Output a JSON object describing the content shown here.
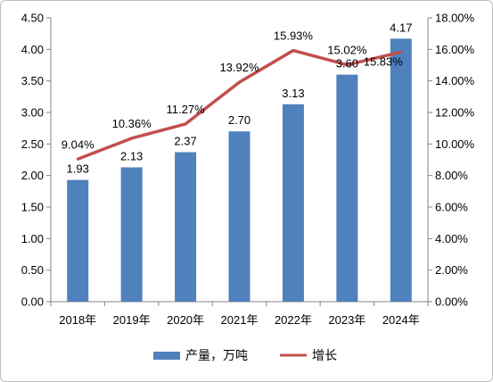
{
  "chart_data": {
    "type": "bar",
    "categories": [
      "2018年",
      "2019年",
      "2020年",
      "2021年",
      "2022年",
      "2023年",
      "2024年"
    ],
    "series": [
      {
        "name": "产量，万吨",
        "type": "bar",
        "axis": "left",
        "values": [
          1.93,
          2.13,
          2.37,
          2.7,
          3.13,
          3.6,
          4.17
        ],
        "labels": [
          "1.93",
          "2.13",
          "2.37",
          "2.70",
          "3.13",
          "3.60",
          "4.17"
        ]
      },
      {
        "name": "增长",
        "type": "line",
        "axis": "right",
        "values": [
          9.04,
          10.36,
          11.27,
          13.92,
          15.93,
          15.02,
          15.83
        ],
        "labels": [
          "9.04%",
          "10.36%",
          "11.27%",
          "13.92%",
          "15.93%",
          "15.02%",
          "15.83%"
        ]
      }
    ],
    "y_left": {
      "range": [
        0,
        4.5
      ],
      "ticks": [
        "0.00",
        "0.50",
        "1.00",
        "1.50",
        "2.00",
        "2.50",
        "3.00",
        "3.50",
        "4.00",
        "4.50"
      ]
    },
    "y_right": {
      "range": [
        0,
        18
      ],
      "ticks": [
        "0.00%",
        "2.00%",
        "4.00%",
        "6.00%",
        "8.00%",
        "10.00%",
        "12.00%",
        "14.00%",
        "16.00%",
        "18.00%"
      ]
    },
    "grid": false,
    "legend": "bottom",
    "colors": {
      "bar": "#4f81bd",
      "line": "#c0504d"
    }
  }
}
